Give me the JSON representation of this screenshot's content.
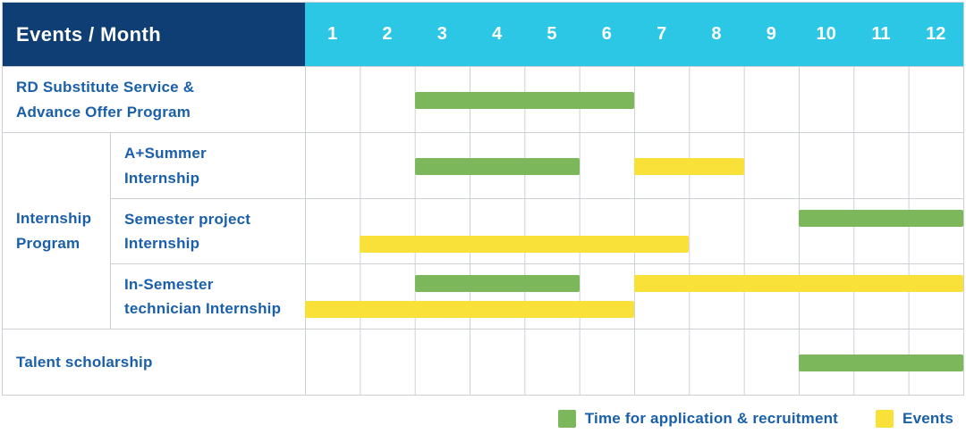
{
  "header": {
    "title": "Events / Month",
    "months": [
      "1",
      "2",
      "3",
      "4",
      "5",
      "6",
      "7",
      "8",
      "9",
      "10",
      "11",
      "12"
    ]
  },
  "legend": {
    "items": [
      {
        "series": "application",
        "label": "Time for application & recruitment"
      },
      {
        "series": "events",
        "label": "Events"
      }
    ]
  },
  "colors": {
    "header_bg": "#0e3e73",
    "month_header_bg": "#2bc7e5",
    "application": "#7cb75c",
    "events": "#f9e13a",
    "label_blue": "#1a5fa9",
    "grid_line": "#cbd0d4",
    "header_text": "#ffffff"
  },
  "chart_data": {
    "type": "bar",
    "variant": "gantt-schedule",
    "title": "Events / Month",
    "x_categories": [
      "1",
      "2",
      "3",
      "4",
      "5",
      "6",
      "7",
      "8",
      "9",
      "10",
      "11",
      "12"
    ],
    "grid": true,
    "legend_position": "bottom-right",
    "series": [
      {
        "key": "application",
        "name": "Time for application & recruitment",
        "color": "#7cb75c"
      },
      {
        "key": "events",
        "name": "Events",
        "color": "#f9e13a"
      }
    ],
    "groups": [
      {
        "label": "",
        "label_lines": [],
        "rows": [
          {
            "label": "RD Substitute Service & Advance Offer Program",
            "label_lines": [
              "RD Substitute Service &",
              "Advance Offer Program"
            ],
            "bars": [
              {
                "series": "application",
                "start_month": 3,
                "end_month": 6,
                "lane": "center"
              }
            ]
          }
        ]
      },
      {
        "label": "Internship Program",
        "label_lines": [
          "Internship",
          "Program"
        ],
        "rows": [
          {
            "label": "A+Summer Internship",
            "label_lines": [
              "A+Summer",
              "Internship"
            ],
            "bars": [
              {
                "series": "application",
                "start_month": 3,
                "end_month": 5,
                "lane": "center"
              },
              {
                "series": "events",
                "start_month": 7,
                "end_month": 8,
                "lane": "center"
              }
            ]
          },
          {
            "label": "Semester project Internship",
            "label_lines": [
              "Semester project",
              "Internship"
            ],
            "bars": [
              {
                "series": "application",
                "start_month": 10,
                "end_month": 12,
                "lane": "top"
              },
              {
                "series": "events",
                "start_month": 2,
                "end_month": 7,
                "lane": "bottom"
              }
            ]
          },
          {
            "label": "In-Semester technician Internship",
            "label_lines": [
              "In-Semester",
              "technician Internship"
            ],
            "bars": [
              {
                "series": "application",
                "start_month": 3,
                "end_month": 5,
                "lane": "top"
              },
              {
                "series": "events",
                "start_month": 7,
                "end_month": 12,
                "lane": "top"
              },
              {
                "series": "events",
                "start_month": 1,
                "end_month": 6,
                "lane": "bottom"
              }
            ]
          }
        ]
      },
      {
        "label": "",
        "label_lines": [],
        "rows": [
          {
            "label": "Talent scholarship",
            "label_lines": [
              "Talent scholarship"
            ],
            "bars": [
              {
                "series": "application",
                "start_month": 10,
                "end_month": 12,
                "lane": "center"
              }
            ]
          }
        ]
      }
    ]
  }
}
